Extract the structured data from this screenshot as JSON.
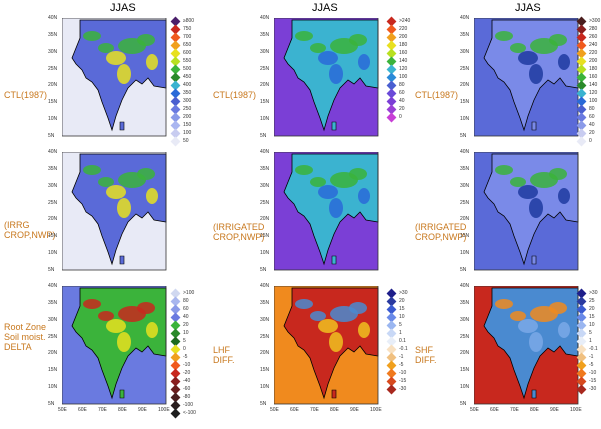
{
  "column_titles": [
    "JJAS",
    "JJAS",
    "JJAS"
  ],
  "row_labels": {
    "r0c0": "CTL(1987)",
    "r0c1": "CTL(1987)",
    "r0c2": "CTL(1987)",
    "r1c0": "(IRRG\nCROP,NWP)",
    "r1c1": "(IRRIGATED\nCROP,NWP)",
    "r1c2": "(IRRIGATED\nCROP,NWP)",
    "r2c0": "Root Zone\nSoil moist.\nDELTA",
    "r2c1": "LHF\nDIFF.",
    "r2c2": "SHF\nDIFF."
  },
  "lat_ticks": [
    "40N",
    "35N",
    "30N",
    "25N",
    "20N",
    "15N",
    "10N",
    "5N"
  ],
  "lon_ticks": [
    "60E",
    "70E",
    "80E",
    "90E",
    "100E"
  ],
  "lon_ticks_left": [
    "50E",
    "60E",
    "70E",
    "80E",
    "90E",
    "100E"
  ],
  "colorbars": {
    "col0_top": [
      "≥800",
      "750",
      "700",
      "650",
      "600",
      "550",
      "500",
      "450",
      "400",
      "350",
      "300",
      "250",
      "200",
      "150",
      "100",
      "50"
    ],
    "col0_bot": [
      ">100",
      "80",
      "60",
      "40",
      "20",
      "10",
      "5",
      "0",
      "-5",
      "-10",
      "-20",
      "-40",
      "-60",
      "-80",
      "-100",
      "<-100"
    ],
    "col1_top": [
      ">240",
      "220",
      "200",
      "180",
      "160",
      "140",
      "120",
      "100",
      "80",
      "60",
      "40",
      "20",
      "0"
    ],
    "col1_bot": [
      ">30",
      "20",
      "15",
      "10",
      "5",
      "1",
      "0.1",
      "-0.1",
      "-1",
      "-5",
      "-10",
      "-15",
      "-30"
    ],
    "col2_top": [
      ">300",
      "280",
      "260",
      "240",
      "220",
      "200",
      "180",
      "160",
      "140",
      "120",
      "100",
      "80",
      "60",
      "40",
      "20",
      "0"
    ],
    "col2_bot": [
      ">30",
      "25",
      "20",
      "15",
      "10",
      "5",
      "1",
      "-0.1",
      "-1",
      "-5",
      "-10",
      "-15",
      "-30"
    ]
  },
  "colors": {
    "ocean_light": "#e8eaf6",
    "purple": "#7b3fd6",
    "blue": "#4a5fd0",
    "green": "#3bb33b",
    "yellow": "#e8e020",
    "orange": "#f08a1e",
    "red": "#c8281e",
    "label_orange": "#c8781e"
  }
}
